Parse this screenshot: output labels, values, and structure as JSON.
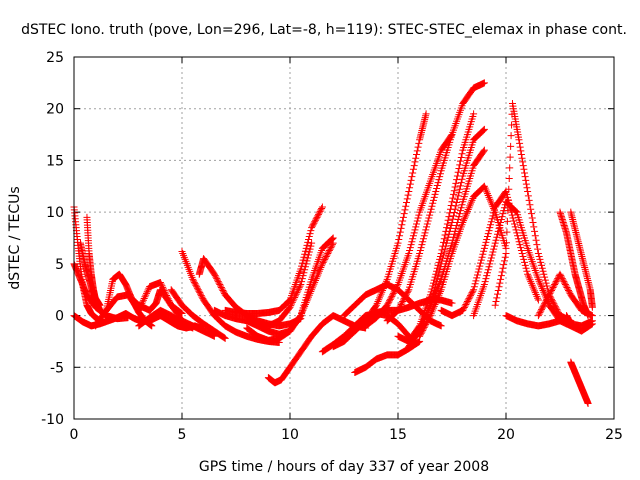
{
  "chart_data": {
    "type": "scatter",
    "title": "dSTEC Iono. truth (pove, Lon=296, Lat=-8, h=119): STEC-STEC_elemax in phase cont.",
    "xlabel": "GPS time / hours of day 337 of year 2008",
    "ylabel": "dSTEC  / TECUs",
    "xlim": [
      0,
      25
    ],
    "ylim": [
      -10,
      25
    ],
    "xticks": [
      0,
      5,
      10,
      15,
      20,
      25
    ],
    "yticks": [
      -10,
      -5,
      0,
      5,
      10,
      15,
      20,
      25
    ],
    "grid": true,
    "marker": "+",
    "series_color": "#ff0000",
    "series": [
      {
        "x": [
          0.0,
          0.2,
          0.4,
          0.6,
          0.8,
          1.0,
          1.2
        ],
        "y": [
          10.5,
          6.5,
          3.0,
          1.0,
          0.2,
          -0.2,
          -0.5
        ]
      },
      {
        "x": [
          0.0,
          0.3,
          0.6,
          1.0,
          1.5,
          2.0,
          2.5
        ],
        "y": [
          5.0,
          3.5,
          2.0,
          0.8,
          0.0,
          -0.3,
          -0.2
        ]
      },
      {
        "x": [
          0.3,
          0.5,
          0.7,
          0.9,
          1.2
        ],
        "y": [
          7.0,
          5.0,
          3.5,
          2.0,
          1.0
        ]
      },
      {
        "x": [
          0.6,
          0.7,
          0.8,
          0.9,
          1.0,
          1.2,
          1.5
        ],
        "y": [
          9.5,
          6.0,
          4.0,
          2.5,
          1.5,
          0.5,
          0.0
        ]
      },
      {
        "x": [
          0.0,
          0.4,
          0.8,
          1.2,
          1.6,
          2.0,
          2.4,
          2.8,
          3.2,
          3.6,
          4.0,
          4.4,
          4.8,
          5.2,
          5.6,
          6.0
        ],
        "y": [
          0.0,
          -0.6,
          -1.0,
          -0.8,
          -0.5,
          -0.2,
          0.2,
          -0.3,
          -0.6,
          -0.4,
          0.0,
          -0.5,
          -1.0,
          -1.2,
          -1.0,
          -1.3
        ]
      },
      {
        "x": [
          1.0,
          1.5,
          2.0,
          2.5,
          3.0,
          3.5,
          4.0,
          4.5,
          5.0
        ],
        "y": [
          -1.0,
          0.5,
          1.8,
          2.0,
          0.5,
          2.8,
          3.2,
          1.0,
          0.2
        ]
      },
      {
        "x": [
          1.5,
          1.8,
          2.1,
          2.4,
          2.7,
          3.0,
          3.3,
          3.6
        ],
        "y": [
          0.5,
          3.5,
          4.0,
          3.0,
          1.5,
          0.3,
          -0.5,
          -1.0
        ]
      },
      {
        "x": [
          2.5,
          3.0,
          3.5,
          3.8,
          4.0,
          4.5,
          5.0,
          5.5,
          6.0,
          6.5
        ],
        "y": [
          2.0,
          1.0,
          0.5,
          1.2,
          2.5,
          1.0,
          -0.5,
          -1.0,
          -1.5,
          -2.0
        ]
      },
      {
        "x": [
          3.0,
          3.5,
          4.0,
          4.5,
          5.0,
          5.5
        ],
        "y": [
          -1.0,
          -0.2,
          0.5,
          0.0,
          -0.8,
          -1.2
        ]
      },
      {
        "x": [
          4.5,
          5.0,
          5.5,
          6.0,
          6.5,
          7.0
        ],
        "y": [
          2.5,
          1.0,
          0.0,
          -0.8,
          -1.5,
          -2.2
        ]
      },
      {
        "x": [
          5.0,
          5.5,
          6.0,
          6.5,
          7.0,
          7.5,
          8.0,
          8.5,
          9.0,
          9.5
        ],
        "y": [
          6.2,
          3.5,
          1.5,
          0.0,
          -1.0,
          -1.6,
          -2.0,
          -2.3,
          -2.5,
          -2.6
        ]
      },
      {
        "x": [
          5.8,
          6.0,
          6.5,
          7.0,
          7.5,
          8.0,
          8.5,
          9.0,
          9.5,
          10.0,
          10.5
        ],
        "y": [
          4.0,
          5.5,
          4.0,
          2.0,
          0.8,
          0.0,
          -0.5,
          -0.8,
          -1.0,
          -0.8,
          -0.3
        ]
      },
      {
        "x": [
          6.5,
          7.0,
          7.5,
          8.0,
          8.5,
          9.0,
          9.5,
          10.0,
          10.5,
          11.0
        ],
        "y": [
          0.5,
          0.0,
          -0.3,
          -0.5,
          -0.8,
          -1.0,
          -0.5,
          0.8,
          3.0,
          7.0
        ]
      },
      {
        "x": [
          7.0,
          7.5,
          8.0,
          8.5,
          9.0,
          9.5,
          10.0,
          10.5,
          11.0,
          11.5
        ],
        "y": [
          0.5,
          0.3,
          0.2,
          0.2,
          0.3,
          0.5,
          1.5,
          4.5,
          8.5,
          10.5
        ]
      },
      {
        "x": [
          8.0,
          8.5,
          9.0,
          9.5,
          10.0,
          10.5,
          11.0,
          11.5,
          12.0
        ],
        "y": [
          -0.5,
          -1.0,
          -1.5,
          -1.8,
          -1.5,
          0.0,
          3.5,
          6.5,
          7.5
        ]
      },
      {
        "x": [
          8.0,
          8.5,
          9.0,
          9.5,
          10.0,
          10.5,
          11.0,
          11.5,
          12.0
        ],
        "y": [
          -1.2,
          -2.0,
          -2.4,
          -2.2,
          -1.5,
          0.0,
          2.5,
          5.0,
          7.0
        ]
      },
      {
        "x": [
          9.0,
          9.3,
          9.6,
          10.0,
          10.5,
          11.0,
          11.5,
          12.0,
          12.5,
          13.0,
          13.5
        ],
        "y": [
          -6.0,
          -6.5,
          -6.2,
          -5.0,
          -3.5,
          -2.0,
          -0.8,
          0.0,
          -0.5,
          -1.0,
          -1.2
        ]
      },
      {
        "x": [
          11.5,
          12.0,
          12.5,
          13.0,
          13.5,
          14.0,
          14.5,
          15.0,
          15.5
        ],
        "y": [
          -3.5,
          -2.8,
          -2.0,
          -1.0,
          0.0,
          0.2,
          0.0,
          -0.8,
          -2.0
        ]
      },
      {
        "x": [
          12.0,
          12.5,
          13.0,
          13.5,
          14.0,
          14.5,
          15.0,
          15.5,
          16.0,
          16.5,
          17.0,
          17.5
        ],
        "y": [
          -3.0,
          -2.5,
          -1.5,
          -0.5,
          0.3,
          0.5,
          0.5,
          0.8,
          1.2,
          1.5,
          1.5,
          1.2
        ]
      },
      {
        "x": [
          12.5,
          13.0,
          13.5,
          14.0,
          14.5,
          15.0,
          15.5,
          16.0,
          16.5,
          17.0
        ],
        "y": [
          0.0,
          1.0,
          2.0,
          2.5,
          3.0,
          2.5,
          1.5,
          0.5,
          -0.5,
          -1.0
        ]
      },
      {
        "x": [
          13.0,
          13.5,
          14.0,
          14.5,
          15.0,
          15.5,
          16.0
        ],
        "y": [
          -5.5,
          -5.0,
          -4.2,
          -3.8,
          -3.8,
          -3.2,
          -2.5
        ]
      },
      {
        "x": [
          13.0,
          13.5,
          14.0,
          14.5,
          15.0,
          15.5,
          16.0,
          16.3
        ],
        "y": [
          -1.5,
          -0.5,
          1.0,
          3.5,
          7.0,
          12.0,
          17.0,
          19.5
        ]
      },
      {
        "x": [
          13.5,
          14.0,
          14.5,
          15.0,
          15.5,
          16.0,
          16.5,
          17.0,
          17.5
        ],
        "y": [
          -1.0,
          -0.2,
          1.0,
          3.0,
          6.0,
          10.0,
          13.0,
          16.0,
          17.5
        ]
      },
      {
        "x": [
          14.5,
          15.0,
          15.5,
          16.0,
          16.5,
          17.0,
          17.5,
          18.0,
          18.5,
          19.0
        ],
        "y": [
          -0.5,
          0.5,
          2.5,
          6.0,
          10.0,
          14.0,
          17.5,
          20.5,
          22.0,
          22.5
        ]
      },
      {
        "x": [
          15.0,
          15.5,
          16.0,
          16.5,
          17.0,
          17.5,
          18.0,
          18.5
        ],
        "y": [
          -2.0,
          -2.5,
          -1.0,
          2.0,
          6.0,
          11.0,
          16.0,
          19.5
        ]
      },
      {
        "x": [
          15.5,
          16.0,
          16.5,
          17.0,
          17.5,
          18.0,
          18.5,
          19.0
        ],
        "y": [
          -3.0,
          -1.5,
          1.0,
          5.0,
          9.0,
          13.5,
          17.0,
          18.0
        ]
      },
      {
        "x": [
          16.0,
          16.5,
          17.0,
          17.5,
          18.0,
          18.5,
          19.0,
          19.5,
          20.0
        ],
        "y": [
          -2.0,
          0.0,
          2.5,
          6.0,
          9.0,
          11.5,
          12.5,
          10.0,
          6.5
        ]
      },
      {
        "x": [
          16.5,
          17.0,
          17.5,
          18.0,
          18.5,
          19.0
        ],
        "y": [
          1.0,
          3.5,
          7.0,
          11.0,
          14.5,
          16.0
        ]
      },
      {
        "x": [
          17.0,
          17.5,
          18.0,
          18.5,
          19.0,
          19.5,
          20.0,
          20.5,
          21.0,
          21.5
        ],
        "y": [
          0.5,
          0.0,
          0.5,
          2.5,
          6.5,
          10.5,
          12.0,
          8.0,
          4.0,
          1.5
        ]
      },
      {
        "x": [
          18.5,
          19.0,
          19.5,
          20.0,
          20.5,
          21.0,
          21.5,
          22.0,
          22.5
        ],
        "y": [
          0.0,
          3.0,
          7.0,
          11.0,
          10.0,
          6.5,
          3.5,
          1.0,
          -0.5
        ]
      },
      {
        "x": [
          19.5,
          20.0,
          20.3,
          20.6,
          21.0,
          21.5,
          22.0,
          22.5,
          23.0
        ],
        "y": [
          1.0,
          6.0,
          20.5,
          17.0,
          12.0,
          6.0,
          2.0,
          0.0,
          -0.5
        ]
      },
      {
        "x": [
          20.0,
          20.5,
          21.0,
          21.5,
          22.0,
          22.5,
          23.0,
          23.5,
          24.0
        ],
        "y": [
          0.0,
          -0.5,
          -0.8,
          -1.0,
          -0.8,
          -0.5,
          -1.0,
          -1.5,
          -0.8
        ]
      },
      {
        "x": [
          21.5,
          22.0,
          22.5,
          23.0,
          23.5,
          24.0
        ],
        "y": [
          0.0,
          2.0,
          4.0,
          2.0,
          0.5,
          0.0
        ]
      },
      {
        "x": [
          22.5,
          22.8,
          23.0,
          23.2,
          23.4,
          23.6,
          23.8
        ],
        "y": [
          10.0,
          8.0,
          6.0,
          4.0,
          2.5,
          1.0,
          0.0
        ]
      },
      {
        "x": [
          23.0,
          23.3,
          23.6,
          23.9,
          24.0
        ],
        "y": [
          10.0,
          7.5,
          5.0,
          2.5,
          0.8
        ]
      },
      {
        "x": [
          22.8,
          23.0,
          23.5,
          24.0
        ],
        "y": [
          0.0,
          -0.8,
          -1.0,
          -0.5
        ]
      },
      {
        "x": [
          23.0,
          23.2,
          23.4,
          23.6,
          23.8
        ],
        "y": [
          -4.5,
          -5.5,
          -6.5,
          -7.5,
          -8.5
        ]
      }
    ]
  }
}
